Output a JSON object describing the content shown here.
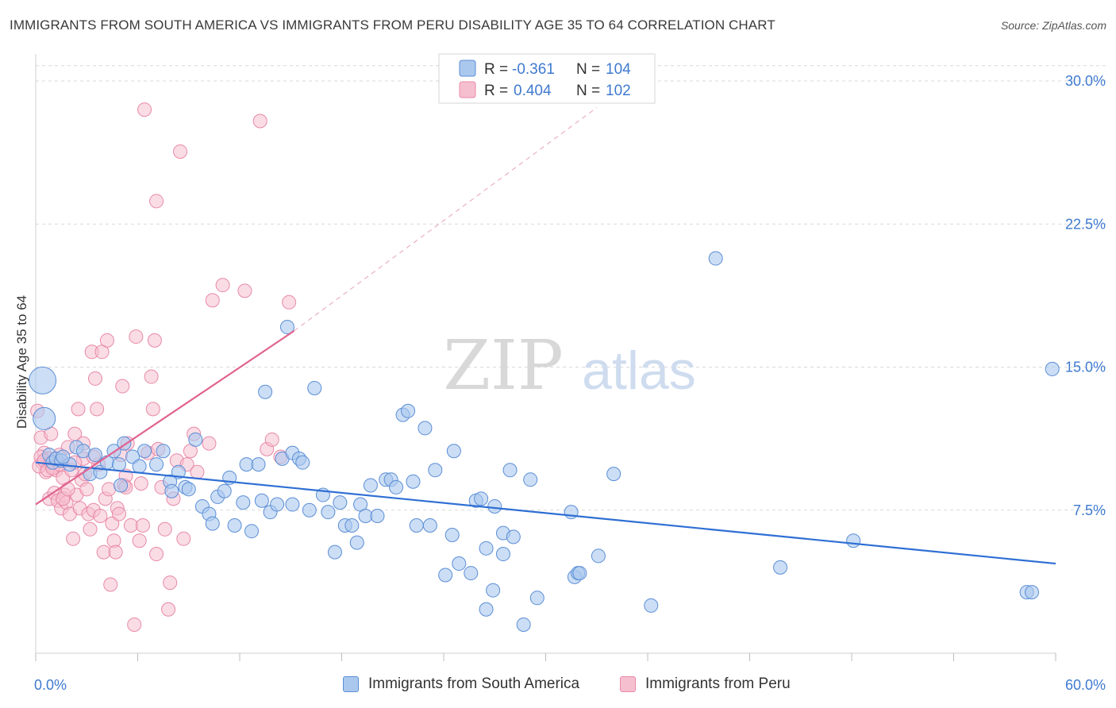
{
  "title": "IMMIGRANTS FROM SOUTH AMERICA VS IMMIGRANTS FROM PERU DISABILITY AGE 35 TO 64 CORRELATION CHART",
  "source": "Source: ZipAtlas.com",
  "watermark": {
    "zip": "ZIP",
    "atlas": "atlas"
  },
  "colors": {
    "blue_fill": "#aac8ee",
    "blue_stroke": "#5b8ed6",
    "blue_line": "#2f6fd4",
    "pink_fill": "#f6bfd0",
    "pink_stroke": "#e889a8",
    "pink_line": "#e0628f",
    "value_text": "#3f7ad0",
    "grid": "#d9d9d9"
  },
  "legend": {
    "r_label": "R =",
    "n_label": "N =",
    "rows": [
      {
        "r": "-0.361",
        "n": "104"
      },
      {
        "r": "0.404",
        "n": "102"
      }
    ]
  },
  "chart_data": {
    "type": "scatter",
    "xlabel": "",
    "ylabel": "Disability Age 35 to 64",
    "xlim": [
      0,
      60
    ],
    "ylim": [
      0,
      31
    ],
    "x_tick_labels": [
      "0.0%",
      "60.0%"
    ],
    "y_ticks": [
      7.5,
      15.0,
      22.5,
      30.0
    ],
    "y_tick_labels": [
      "7.5%",
      "15.0%",
      "22.5%",
      "30.0%"
    ],
    "grid": true,
    "legend_placement": "top-center",
    "series": [
      {
        "name": "Immigrants from South America",
        "color": "#aac8ee",
        "r": -0.361,
        "n": 104,
        "trend": {
          "x": [
            0,
            60
          ],
          "y": [
            10.0,
            4.7
          ]
        },
        "points": [
          [
            0.4,
            14.3
          ],
          [
            0.5,
            12.3
          ],
          [
            0.8,
            10.4
          ],
          [
            1.0,
            10.0
          ],
          [
            1.2,
            10.2
          ],
          [
            1.5,
            10.1
          ],
          [
            2.0,
            9.9
          ],
          [
            2.4,
            10.8
          ],
          [
            2.8,
            10.6
          ],
          [
            3.2,
            9.4
          ],
          [
            3.5,
            10.4
          ],
          [
            3.8,
            9.5
          ],
          [
            4.2,
            10.0
          ],
          [
            4.6,
            10.6
          ],
          [
            5.0,
            8.8
          ],
          [
            5.2,
            11.0
          ],
          [
            5.7,
            10.3
          ],
          [
            6.1,
            9.8
          ],
          [
            6.4,
            10.6
          ],
          [
            7.1,
            9.9
          ],
          [
            7.5,
            10.6
          ],
          [
            7.9,
            9.0
          ],
          [
            8.0,
            8.5
          ],
          [
            8.4,
            9.5
          ],
          [
            8.8,
            8.7
          ],
          [
            9.0,
            8.6
          ],
          [
            9.4,
            11.2
          ],
          [
            9.8,
            7.7
          ],
          [
            10.2,
            7.3
          ],
          [
            10.4,
            6.8
          ],
          [
            10.7,
            8.2
          ],
          [
            11.1,
            8.5
          ],
          [
            11.4,
            9.2
          ],
          [
            11.7,
            6.7
          ],
          [
            12.2,
            7.9
          ],
          [
            12.4,
            9.9
          ],
          [
            12.7,
            6.4
          ],
          [
            13.1,
            9.9
          ],
          [
            13.3,
            8.0
          ],
          [
            13.5,
            13.7
          ],
          [
            13.8,
            7.4
          ],
          [
            14.2,
            7.8
          ],
          [
            14.5,
            10.2
          ],
          [
            14.8,
            17.1
          ],
          [
            15.1,
            7.8
          ],
          [
            15.1,
            10.5
          ],
          [
            15.5,
            10.2
          ],
          [
            15.7,
            10.0
          ],
          [
            16.1,
            7.5
          ],
          [
            16.4,
            13.9
          ],
          [
            16.9,
            8.3
          ],
          [
            17.2,
            7.4
          ],
          [
            17.6,
            5.3
          ],
          [
            17.9,
            7.9
          ],
          [
            18.2,
            6.7
          ],
          [
            18.6,
            6.7
          ],
          [
            18.9,
            5.8
          ],
          [
            19.1,
            7.8
          ],
          [
            19.4,
            7.2
          ],
          [
            19.7,
            8.8
          ],
          [
            20.1,
            7.2
          ],
          [
            20.6,
            9.1
          ],
          [
            20.9,
            9.1
          ],
          [
            21.2,
            8.7
          ],
          [
            21.6,
            12.5
          ],
          [
            21.9,
            12.7
          ],
          [
            22.2,
            9.0
          ],
          [
            22.9,
            11.8
          ],
          [
            22.4,
            6.7
          ],
          [
            23.2,
            6.7
          ],
          [
            23.5,
            9.6
          ],
          [
            24.1,
            4.1
          ],
          [
            24.5,
            6.2
          ],
          [
            24.6,
            10.6
          ],
          [
            24.9,
            4.7
          ],
          [
            25.6,
            4.2
          ],
          [
            25.9,
            8.0
          ],
          [
            26.2,
            8.1
          ],
          [
            26.5,
            2.3
          ],
          [
            26.5,
            5.5
          ],
          [
            26.9,
            3.3
          ],
          [
            27.0,
            7.7
          ],
          [
            27.5,
            6.3
          ],
          [
            27.5,
            5.2
          ],
          [
            27.9,
            9.6
          ],
          [
            28.1,
            6.1
          ],
          [
            28.7,
            1.5
          ],
          [
            29.1,
            9.1
          ],
          [
            29.5,
            2.9
          ],
          [
            31.5,
            7.4
          ],
          [
            31.7,
            4.0
          ],
          [
            31.9,
            4.2
          ],
          [
            32.0,
            4.2
          ],
          [
            33.1,
            5.1
          ],
          [
            34.0,
            9.4
          ],
          [
            36.2,
            2.5
          ],
          [
            40.0,
            20.7
          ],
          [
            43.8,
            4.5
          ],
          [
            48.1,
            5.9
          ],
          [
            58.3,
            3.2
          ],
          [
            58.6,
            3.2
          ],
          [
            59.8,
            14.9
          ],
          [
            1.6,
            10.3
          ],
          [
            4.9,
            9.9
          ]
        ]
      },
      {
        "name": "Immigrants from Peru",
        "color": "#f6bfd0",
        "r": 0.404,
        "n": 102,
        "trend": {
          "x": [
            0,
            15.2
          ],
          "y": [
            7.8,
            16.9
          ],
          "dash_x": [
            15.2,
            33.0
          ],
          "dash_y": [
            16.9,
            28.6
          ]
        },
        "points": [
          [
            0.1,
            12.7
          ],
          [
            0.3,
            11.3
          ],
          [
            0.4,
            10.0
          ],
          [
            0.5,
            10.5
          ],
          [
            0.6,
            9.5
          ],
          [
            0.7,
            10.2
          ],
          [
            0.8,
            8.1
          ],
          [
            0.9,
            11.5
          ],
          [
            1.0,
            9.8
          ],
          [
            1.1,
            8.4
          ],
          [
            1.2,
            9.6
          ],
          [
            1.3,
            8.0
          ],
          [
            1.4,
            10.4
          ],
          [
            1.5,
            7.6
          ],
          [
            1.6,
            9.2
          ],
          [
            1.7,
            8.3
          ],
          [
            1.8,
            7.9
          ],
          [
            1.9,
            10.8
          ],
          [
            2.0,
            7.3
          ],
          [
            2.1,
            9.6
          ],
          [
            2.2,
            6.0
          ],
          [
            2.3,
            11.5
          ],
          [
            2.4,
            8.3
          ],
          [
            2.5,
            12.8
          ],
          [
            2.6,
            7.6
          ],
          [
            2.7,
            9.1
          ],
          [
            2.8,
            10.2
          ],
          [
            2.9,
            9.4
          ],
          [
            3.0,
            8.6
          ],
          [
            3.1,
            7.3
          ],
          [
            3.2,
            6.5
          ],
          [
            3.3,
            15.8
          ],
          [
            3.4,
            7.5
          ],
          [
            3.5,
            14.4
          ],
          [
            3.6,
            12.8
          ],
          [
            3.7,
            9.9
          ],
          [
            3.8,
            7.2
          ],
          [
            3.9,
            15.8
          ],
          [
            4.0,
            5.3
          ],
          [
            4.1,
            8.1
          ],
          [
            4.2,
            16.4
          ],
          [
            4.3,
            8.6
          ],
          [
            4.4,
            3.6
          ],
          [
            4.5,
            6.8
          ],
          [
            4.6,
            5.9
          ],
          [
            4.7,
            5.3
          ],
          [
            4.8,
            7.6
          ],
          [
            4.9,
            7.3
          ],
          [
            5.0,
            10.4
          ],
          [
            5.1,
            14.0
          ],
          [
            5.2,
            8.8
          ],
          [
            5.3,
            9.3
          ],
          [
            5.4,
            11.0
          ],
          [
            5.6,
            6.7
          ],
          [
            5.8,
            1.5
          ],
          [
            5.9,
            16.6
          ],
          [
            6.1,
            5.9
          ],
          [
            6.2,
            8.9
          ],
          [
            6.4,
            28.5
          ],
          [
            6.6,
            10.5
          ],
          [
            6.8,
            14.5
          ],
          [
            6.9,
            12.8
          ],
          [
            7.0,
            16.4
          ],
          [
            7.1,
            23.7
          ],
          [
            7.2,
            10.7
          ],
          [
            7.4,
            8.7
          ],
          [
            7.6,
            6.5
          ],
          [
            7.8,
            2.3
          ],
          [
            7.9,
            3.7
          ],
          [
            8.1,
            8.1
          ],
          [
            8.3,
            10.1
          ],
          [
            8.5,
            26.3
          ],
          [
            8.7,
            6.0
          ],
          [
            8.9,
            9.9
          ],
          [
            9.1,
            10.6
          ],
          [
            9.3,
            11.5
          ],
          [
            9.5,
            9.5
          ],
          [
            10.2,
            11.0
          ],
          [
            10.4,
            18.5
          ],
          [
            11.0,
            19.3
          ],
          [
            12.3,
            19.0
          ],
          [
            13.2,
            27.9
          ],
          [
            13.6,
            10.7
          ],
          [
            13.9,
            11.2
          ],
          [
            14.4,
            10.3
          ],
          [
            14.9,
            18.4
          ],
          [
            0.2,
            9.8
          ],
          [
            0.3,
            10.3
          ],
          [
            0.5,
            10.1
          ],
          [
            0.7,
            9.6
          ],
          [
            0.9,
            10.0
          ],
          [
            1.0,
            9.7
          ],
          [
            1.2,
            10.2
          ],
          [
            1.4,
            9.9
          ],
          [
            2.3,
            10.0
          ],
          [
            1.6,
            8.1
          ],
          [
            2.8,
            11.0
          ],
          [
            3.4,
            10.3
          ],
          [
            5.3,
            8.7
          ],
          [
            7.1,
            5.2
          ],
          [
            6.3,
            6.7
          ],
          [
            1.9,
            8.6
          ]
        ]
      }
    ]
  }
}
